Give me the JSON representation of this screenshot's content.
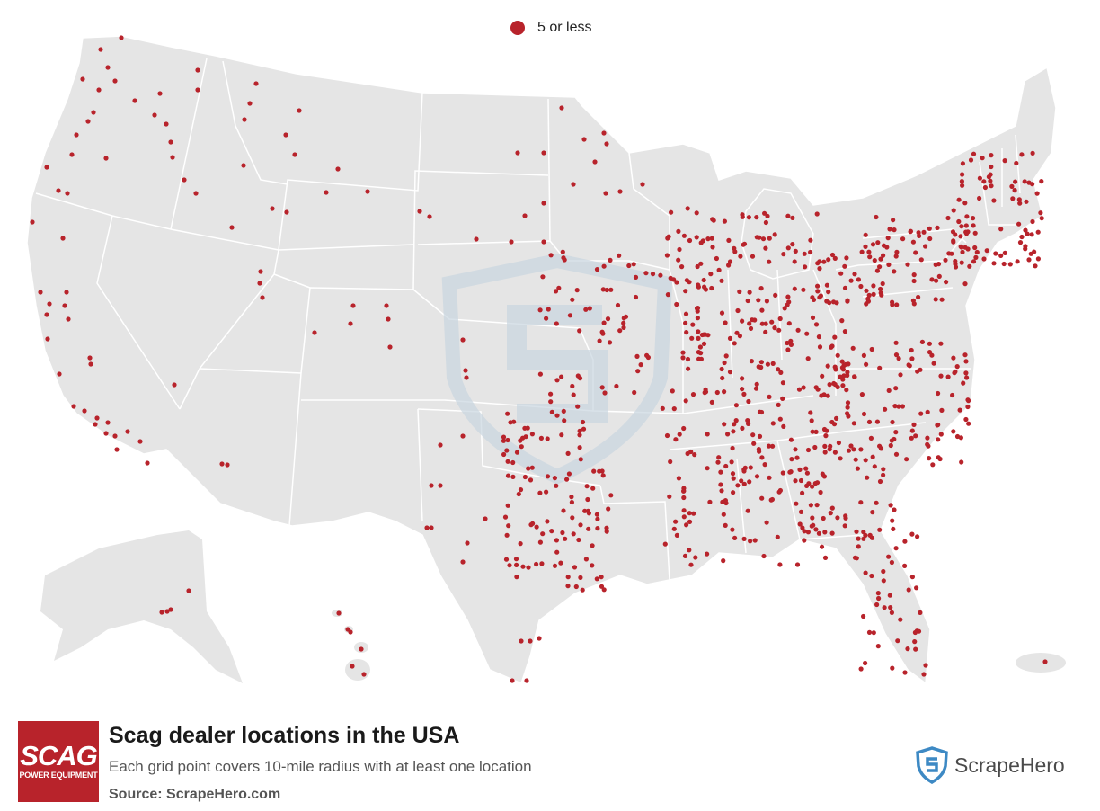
{
  "legend": {
    "label": "5 or less",
    "color": "#b8232b"
  },
  "title": "Scag dealer locations in the USA",
  "subtitle": "Each grid point covers 10-mile radius with at least one location",
  "source": "Source: ScrapeHero.com",
  "brand": {
    "big": "SCAG",
    "small": "POWER EQUIPMENT",
    "color": "#b8232b"
  },
  "scrapehero": {
    "name": "ScrapeHero",
    "color": "#3d89c4"
  },
  "colors": {
    "land": "#e5e5e5",
    "border": "#ffffff",
    "dot": "#b8232b",
    "watermark": "#c9d6e0"
  }
}
